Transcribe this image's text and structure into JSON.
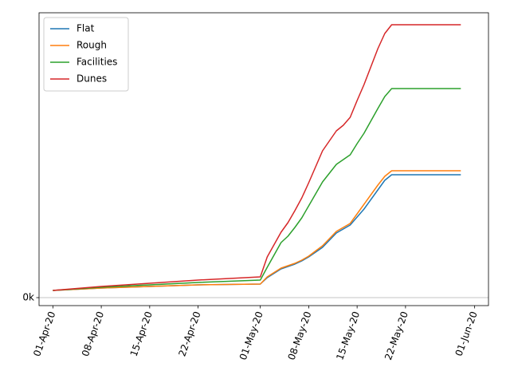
{
  "chart_data": {
    "type": "line",
    "x": [
      "2020-04-01",
      "2020-04-08",
      "2020-04-15",
      "2020-04-22",
      "2020-05-01",
      "2020-05-02",
      "2020-05-04",
      "2020-05-05",
      "2020-05-06",
      "2020-05-07",
      "2020-05-08",
      "2020-05-10",
      "2020-05-12",
      "2020-05-13",
      "2020-05-14",
      "2020-05-15",
      "2020-05-16",
      "2020-05-18",
      "2020-05-19",
      "2020-05-20",
      "2020-05-30"
    ],
    "series": [
      {
        "name": "Flat",
        "color": "#1f77b4",
        "values": [
          0.9,
          1.2,
          1.4,
          1.6,
          1.7,
          2.5,
          3.6,
          3.9,
          4.2,
          4.6,
          5.1,
          6.3,
          8.1,
          8.6,
          9.1,
          10.1,
          11.1,
          13.5,
          14.7,
          15.4,
          15.4
        ]
      },
      {
        "name": "Rough",
        "color": "#ff7f0e",
        "values": [
          0.9,
          1.2,
          1.4,
          1.6,
          1.7,
          2.6,
          3.7,
          4.0,
          4.3,
          4.7,
          5.2,
          6.5,
          8.3,
          8.8,
          9.3,
          10.5,
          11.7,
          14.1,
          15.2,
          15.9,
          15.9
        ]
      },
      {
        "name": "Facilities",
        "color": "#2ca02c",
        "values": [
          0.9,
          1.3,
          1.6,
          1.9,
          2.2,
          3.8,
          6.9,
          7.7,
          8.8,
          10.0,
          11.5,
          14.5,
          16.7,
          17.3,
          17.9,
          19.3,
          20.6,
          23.7,
          25.2,
          26.2,
          26.2
        ]
      },
      {
        "name": "Dunes",
        "color": "#d62728",
        "values": [
          0.9,
          1.4,
          1.8,
          2.2,
          2.6,
          5.1,
          8.2,
          9.4,
          10.9,
          12.5,
          14.4,
          18.4,
          20.9,
          21.6,
          22.6,
          24.7,
          26.7,
          31.2,
          33.1,
          34.2,
          34.2
        ]
      }
    ],
    "xlim": [
      "2020-03-30",
      "2020-06-03"
    ],
    "xticks": [
      {
        "value": "2020-04-01",
        "label": "01-Apr-20"
      },
      {
        "value": "2020-04-08",
        "label": "08-Apr-20"
      },
      {
        "value": "2020-04-15",
        "label": "15-Apr-20"
      },
      {
        "value": "2020-04-22",
        "label": "22-Apr-20"
      },
      {
        "value": "2020-05-01",
        "label": "01-May-20"
      },
      {
        "value": "2020-05-08",
        "label": "08-May-20"
      },
      {
        "value": "2020-05-15",
        "label": "15-May-20"
      },
      {
        "value": "2020-05-22",
        "label": "22-May-20"
      },
      {
        "value": "2020-06-01",
        "label": "01-Jun-20"
      }
    ],
    "ylim": [
      -1.0,
      35.7
    ],
    "yticks": [
      {
        "value": 0,
        "label": "0k"
      }
    ],
    "grid": true,
    "legend": "upper left"
  }
}
